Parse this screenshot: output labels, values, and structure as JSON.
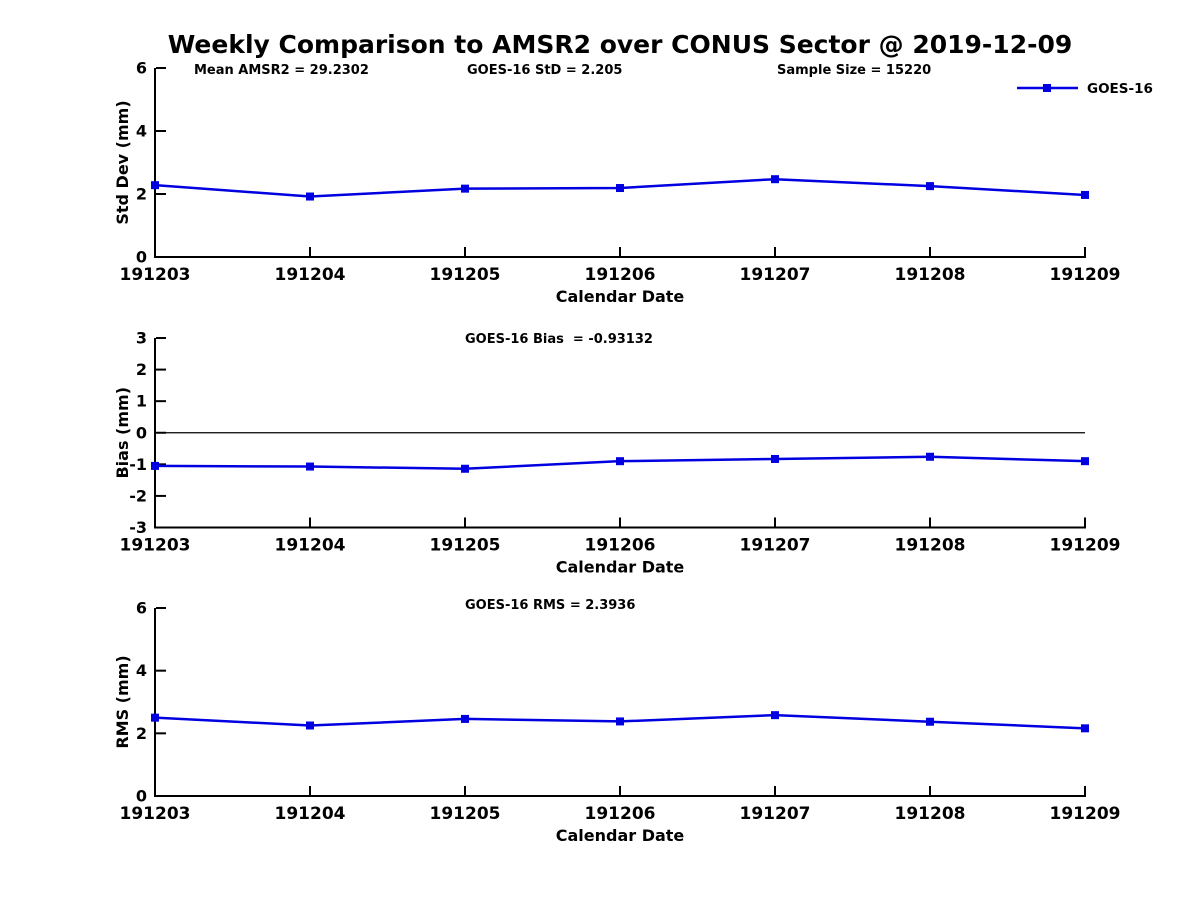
{
  "figure": {
    "title": "Weekly Comparison to AMSR2 over CONUS Sector @ 2019-12-09",
    "xlabel": "Calendar Date",
    "legend": {
      "label": "GOES-16",
      "series_color": "#0000e0"
    },
    "axis_color": "#000000",
    "background_color": "#ffffff"
  },
  "chart_data": [
    {
      "type": "line",
      "panel": "std-dev",
      "annotations": [
        "Mean AMSR2 = 29.2302",
        "GOES-16 StD = 2.205",
        "Sample Size = 15220"
      ],
      "ylabel": "Std Dev (mm)",
      "xlabel": "Calendar Date",
      "categories": [
        "191203",
        "191204",
        "191205",
        "191206",
        "191207",
        "191208",
        "191209"
      ],
      "series": [
        {
          "name": "GOES-16",
          "color": "#0000e0",
          "values": [
            2.28,
            1.92,
            2.17,
            2.19,
            2.47,
            2.25,
            1.97
          ]
        }
      ],
      "ylim": [
        0,
        6
      ],
      "yticks": [
        0,
        2,
        4,
        6
      ],
      "grid": false,
      "legend_position": "top-right"
    },
    {
      "type": "line",
      "panel": "bias",
      "annotations": [
        "GOES-16 Bias  = -0.93132"
      ],
      "ylabel": "Bias (mm)",
      "xlabel": "Calendar Date",
      "categories": [
        "191203",
        "191204",
        "191205",
        "191206",
        "191207",
        "191208",
        "191209"
      ],
      "series": [
        {
          "name": "GOES-16",
          "color": "#0000e0",
          "values": [
            -1.05,
            -1.07,
            -1.14,
            -0.9,
            -0.83,
            -0.76,
            -0.9
          ]
        }
      ],
      "ylim": [
        -3,
        3
      ],
      "yticks": [
        3,
        2,
        1,
        0,
        -1,
        -2,
        -3
      ],
      "zero_line": true,
      "grid": false,
      "legend_position": "none"
    },
    {
      "type": "line",
      "panel": "rms",
      "annotations": [
        "GOES-16 RMS = 2.3936"
      ],
      "ylabel": "RMS (mm)",
      "xlabel": "Calendar Date",
      "categories": [
        "191203",
        "191204",
        "191205",
        "191206",
        "191207",
        "191208",
        "191209"
      ],
      "series": [
        {
          "name": "GOES-16",
          "color": "#0000e0",
          "values": [
            2.5,
            2.25,
            2.46,
            2.38,
            2.58,
            2.37,
            2.16
          ]
        }
      ],
      "ylim": [
        0,
        6
      ],
      "yticks": [
        0,
        2,
        4,
        6
      ],
      "grid": false,
      "legend_position": "none"
    }
  ]
}
